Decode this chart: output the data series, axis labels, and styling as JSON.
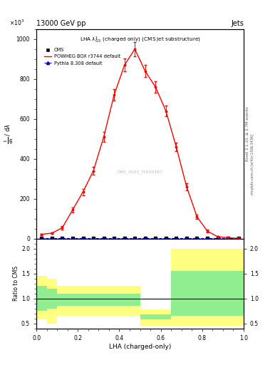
{
  "title_energy": "13000 GeV pp",
  "title_right": "Jets",
  "plot_title": "LHA $\\lambda^{1}_{0.5}$ (charged only) (CMS jet substructure)",
  "watermark": "CMS_2021_I1920187",
  "xlabel": "LHA (charged-only)",
  "scale_label": "$\\times10^{3}$",
  "ylim_main": [
    0,
    1050
  ],
  "yticks_main": [
    0,
    200,
    400,
    600,
    800,
    1000
  ],
  "ylim_ratio": [
    0.4,
    2.2
  ],
  "yticks_ratio": [
    0.5,
    1.0,
    1.5,
    2.0
  ],
  "color_powheg": "#ff0000",
  "color_cms": "#000000",
  "color_pythia": "#0000bb",
  "color_green": "#90ee90",
  "color_yellow": "#ffff80",
  "legend_cms": "CMS",
  "legend_powheg": "POWHEG BOX r3744 default",
  "legend_pythia": "Pythia 8.308 default",
  "right_label1": "Rivet 3.1.10, ≥ 2.7M events",
  "right_label2": "mcplots.cern.ch [arXiv:1306.3436]",
  "lha_x": [
    0.025,
    0.075,
    0.125,
    0.175,
    0.225,
    0.275,
    0.325,
    0.375,
    0.425,
    0.475,
    0.525,
    0.575,
    0.625,
    0.675,
    0.725,
    0.775,
    0.825,
    0.875,
    0.925,
    0.975
  ],
  "powheg_y": [
    22,
    28,
    55,
    145,
    235,
    340,
    510,
    720,
    870,
    950,
    840,
    760,
    640,
    460,
    260,
    110,
    38,
    10,
    5,
    2
  ],
  "powheg_yerr": [
    4,
    5,
    8,
    12,
    16,
    20,
    25,
    28,
    32,
    35,
    30,
    28,
    26,
    22,
    18,
    12,
    7,
    4,
    2,
    1
  ],
  "cms_y": [
    2,
    2,
    2,
    2,
    2,
    2,
    2,
    2,
    2,
    2,
    2,
    2,
    2,
    2,
    2,
    2,
    2,
    2,
    2,
    2
  ],
  "pythia_y": [
    2,
    2,
    2,
    2,
    2,
    2,
    2,
    2,
    2,
    2,
    2,
    2,
    2,
    2,
    2,
    2,
    2,
    2,
    2,
    2
  ],
  "ratio_bins_x": [
    0.0,
    0.05,
    0.1,
    0.2,
    0.5,
    0.65,
    1.0
  ],
  "ratio_green_hi": [
    1.25,
    1.2,
    1.1,
    1.1,
    0.68,
    1.55
  ],
  "ratio_green_lo": [
    0.75,
    0.8,
    0.85,
    0.85,
    0.58,
    0.65
  ],
  "ratio_yellow_hi": [
    1.45,
    1.4,
    1.25,
    1.25,
    0.78,
    2.0
  ],
  "ratio_yellow_lo": [
    0.58,
    0.5,
    0.65,
    0.65,
    0.45,
    0.45
  ]
}
